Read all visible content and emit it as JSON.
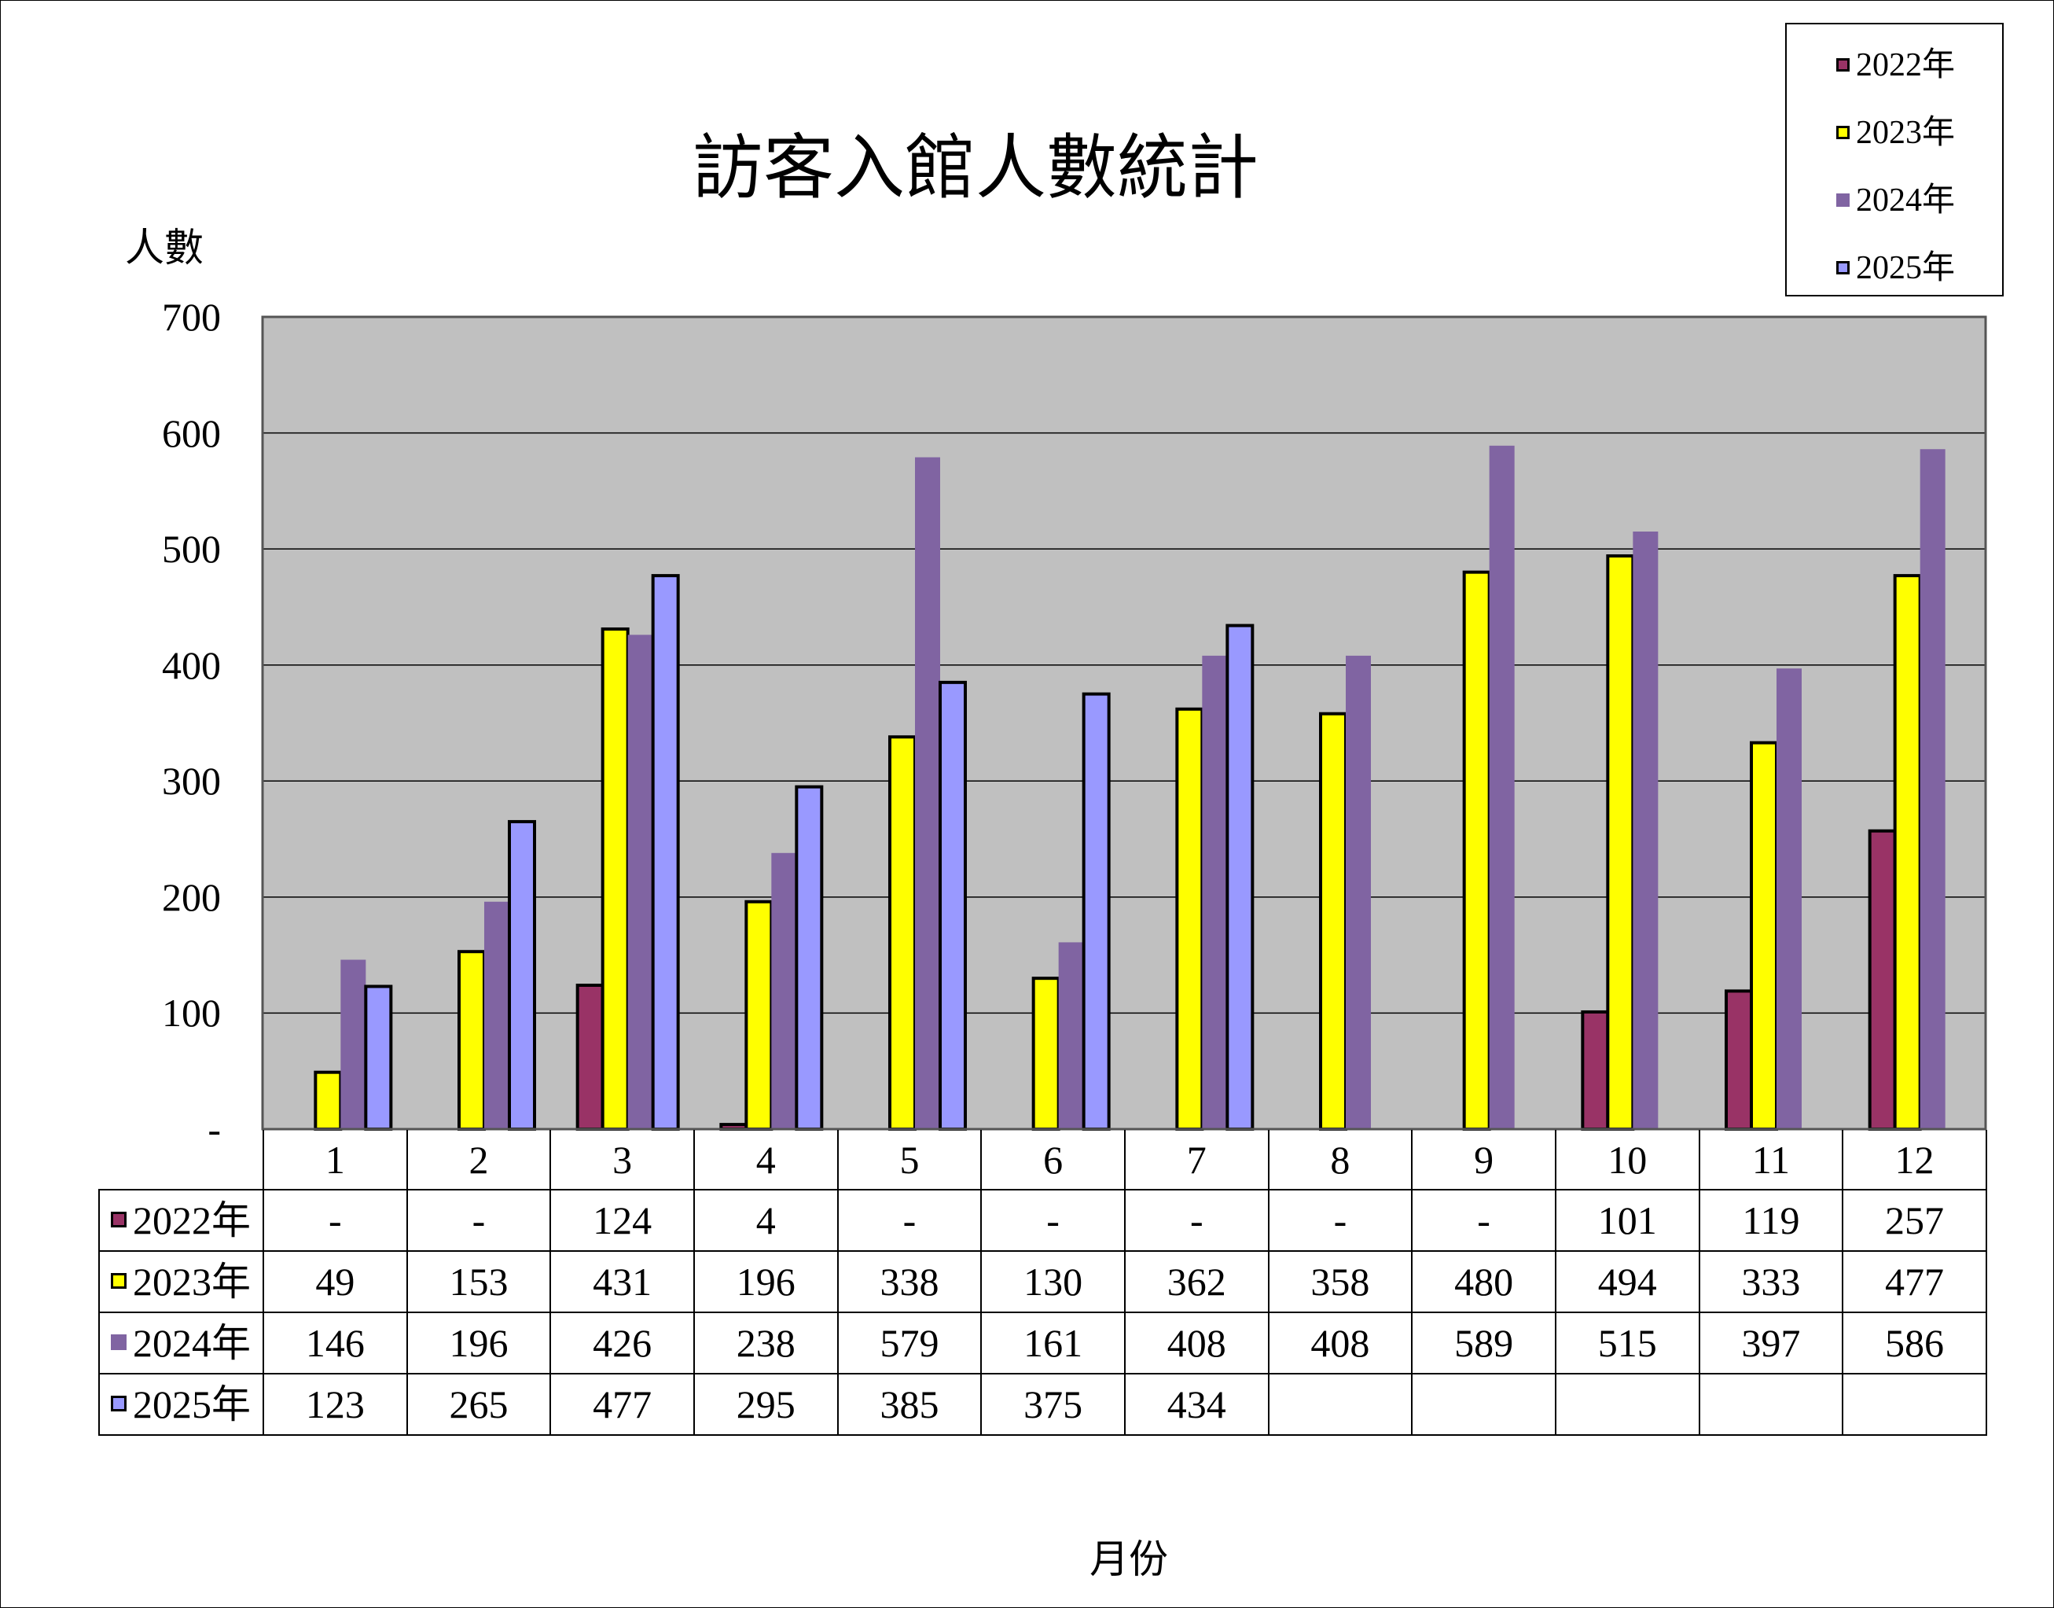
{
  "chart_data": {
    "type": "bar",
    "title": "訪客入館人數統計",
    "ylabel": "人數",
    "xlabel": "月份",
    "ylim": [
      0,
      700
    ],
    "yticks": [
      "-",
      "100",
      "200",
      "300",
      "400",
      "500",
      "600",
      "700"
    ],
    "grid": true,
    "legend_position": "top-right",
    "plot_background": "#c0c0c0",
    "categories": [
      "1",
      "2",
      "3",
      "4",
      "5",
      "6",
      "7",
      "8",
      "9",
      "10",
      "11",
      "12"
    ],
    "series": [
      {
        "name": "2022年",
        "color": "#993366",
        "outline": true,
        "values": [
          0,
          0,
          124,
          4,
          0,
          0,
          0,
          0,
          0,
          101,
          119,
          257
        ]
      },
      {
        "name": "2023年",
        "color": "#ffff00",
        "outline": true,
        "values": [
          49,
          153,
          431,
          196,
          338,
          130,
          362,
          358,
          480,
          494,
          333,
          477
        ]
      },
      {
        "name": "2024年",
        "color": "#8064a2",
        "outline": false,
        "values": [
          146,
          196,
          426,
          238,
          579,
          161,
          408,
          408,
          589,
          515,
          397,
          586
        ]
      },
      {
        "name": "2025年",
        "color": "#9999ff",
        "outline": true,
        "values": [
          123,
          265,
          477,
          295,
          385,
          375,
          434,
          null,
          null,
          null,
          null,
          null
        ]
      }
    ],
    "table": {
      "rows": [
        {
          "label": "2022年",
          "cells": [
            "-",
            "-",
            "124",
            "4",
            "-",
            "-",
            "-",
            "-",
            "-",
            "101",
            "119",
            "257"
          ]
        },
        {
          "label": "2023年",
          "cells": [
            "49",
            "153",
            "431",
            "196",
            "338",
            "130",
            "362",
            "358",
            "480",
            "494",
            "333",
            "477"
          ]
        },
        {
          "label": "2024年",
          "cells": [
            "146",
            "196",
            "426",
            "238",
            "579",
            "161",
            "408",
            "408",
            "589",
            "515",
            "397",
            "586"
          ]
        },
        {
          "label": "2025年",
          "cells": [
            "123",
            "265",
            "477",
            "295",
            "385",
            "375",
            "434",
            "",
            "",
            "",
            "",
            ""
          ]
        }
      ]
    }
  }
}
